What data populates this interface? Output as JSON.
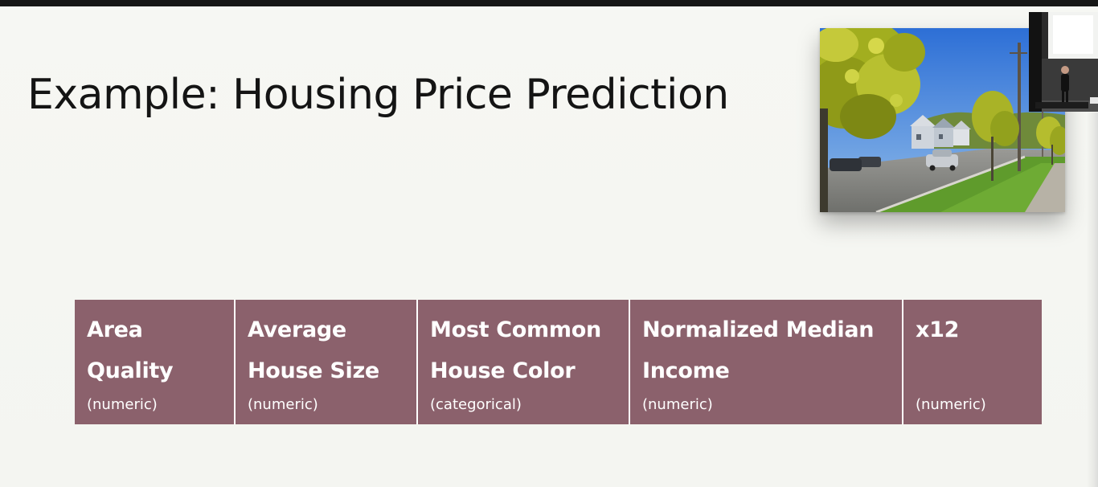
{
  "slide": {
    "title": "Example: Housing Price Prediction"
  },
  "photo": {
    "subject": "residential street with trees, houses and parked cars"
  },
  "video": {
    "subject": "presenter standing at podium"
  },
  "features": [
    {
      "name": "Area\nQuality",
      "type": "(numeric)"
    },
    {
      "name": "Average\nHouse Size",
      "type": "(numeric)"
    },
    {
      "name": "Most Common\nHouse Color",
      "type": "(categorical)"
    },
    {
      "name": "Normalized Median\nIncome",
      "type": "(numeric)"
    },
    {
      "name": "x12",
      "type": "(numeric)"
    }
  ],
  "colors": {
    "cell_background": "#8b616c",
    "cell_text": "#ffffff",
    "title_text": "#141414"
  }
}
